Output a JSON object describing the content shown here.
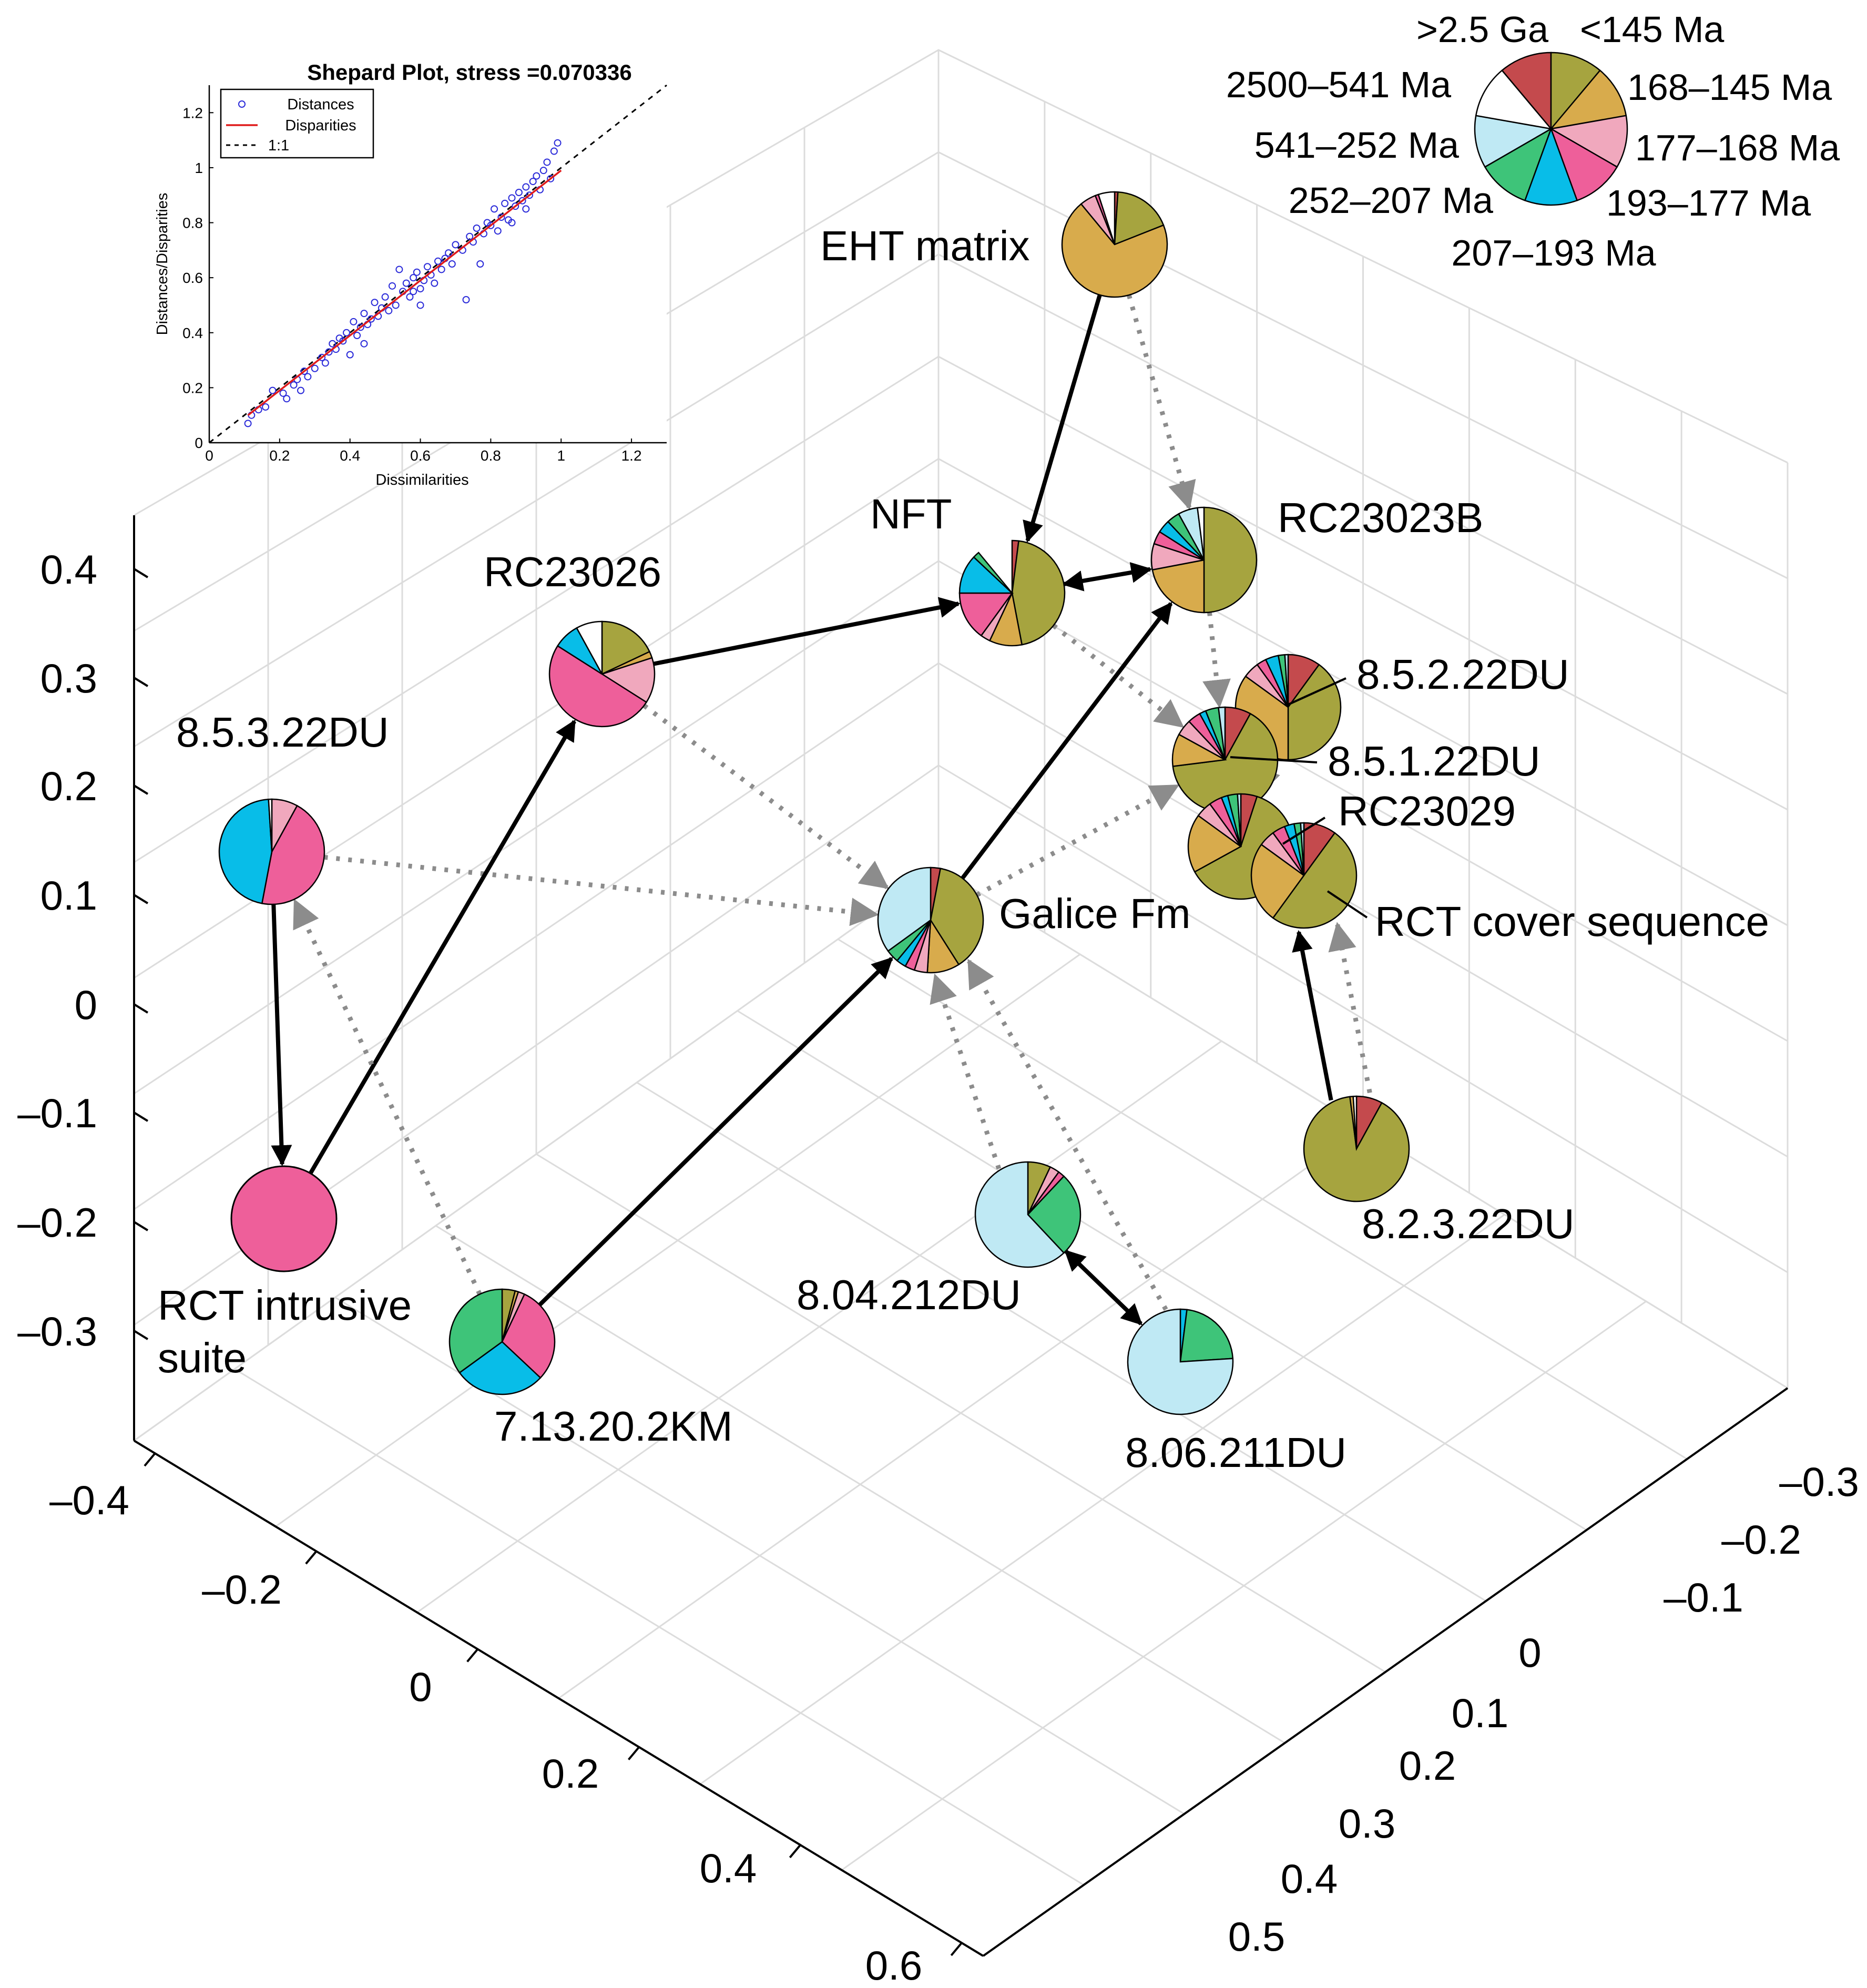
{
  "chart_data": {
    "type": "3d-scatter-pie",
    "title": "",
    "axes": {
      "vertical_ticks": [
        "0.4",
        "0.3",
        "0.2",
        "0.1",
        "0",
        "–0.1",
        "–0.2",
        "–0.3"
      ],
      "left_ticks": [
        "–0.4",
        "–0.2",
        "0",
        "0.2",
        "0.4",
        "0.6"
      ],
      "right_ticks": [
        "–0.3",
        "–0.2",
        "–0.1",
        "0",
        "0.1",
        "0.2",
        "0.3",
        "0.4",
        "0.5"
      ]
    },
    "age_bins": [
      {
        "name": ">2.5 Ga",
        "color": "#c44a4d"
      },
      {
        "name": "2500–541 Ma",
        "color": "#a6a43f"
      },
      {
        "name": "541–252 Ma",
        "color": "#d8ab4c"
      },
      {
        "name": "252–207 Ma",
        "color": "#f0a8bd"
      },
      {
        "name": "207–193 Ma",
        "color": "#ee5f9a"
      },
      {
        "name": "193–177 Ma",
        "color": "#08bde8"
      },
      {
        "name": "177–168 Ma",
        "color": "#3ec479"
      },
      {
        "name": "168–145 Ma",
        "color": "#bfe9f4"
      },
      {
        "name": "<145 Ma",
        "color": "#ffffff"
      }
    ],
    "samples": [
      {
        "id": "eht",
        "label": "EHT matrix",
        "fractions": [
          0.01,
          0.18,
          0.7,
          0.05,
          0.01,
          0,
          0,
          0,
          0.05
        ]
      },
      {
        "id": "nft",
        "label": "NFT",
        "fractions": [
          0.02,
          0.45,
          0.1,
          0.03,
          0.15,
          0.12,
          0.02,
          0,
          0
        ]
      },
      {
        "id": "rc23023b",
        "label": "RC23023B",
        "fractions": [
          0,
          0.5,
          0.22,
          0.08,
          0.04,
          0.04,
          0.04,
          0.06,
          0.02
        ]
      },
      {
        "id": "rc23026",
        "label": "RC23026",
        "fractions": [
          0,
          0.18,
          0.02,
          0.14,
          0.5,
          0.08,
          0,
          0,
          0.08
        ]
      },
      {
        "id": "d8531",
        "label": "8.5.3.22DU",
        "fractions": [
          0,
          0,
          0,
          0.08,
          0.45,
          0.46,
          0,
          0,
          0.01
        ]
      },
      {
        "id": "galice",
        "label": "Galice Fm",
        "fractions": [
          0.03,
          0.38,
          0.1,
          0.04,
          0.03,
          0.03,
          0.04,
          0.35,
          0
        ]
      },
      {
        "id": "d8522",
        "label": "8.5.2.22DU",
        "fractions": [
          0.1,
          0.4,
          0.35,
          0.05,
          0.03,
          0.04,
          0.02,
          0.01,
          0
        ]
      },
      {
        "id": "d8512",
        "label": "8.5.1.22DU",
        "fractions": [
          0.08,
          0.65,
          0.1,
          0.05,
          0.04,
          0.02,
          0.04,
          0.02,
          0
        ]
      },
      {
        "id": "rc23029",
        "label": "RC23029",
        "fractions": [
          0.05,
          0.62,
          0.18,
          0.05,
          0.04,
          0.02,
          0.03,
          0.01,
          0
        ]
      },
      {
        "id": "rctcover",
        "label": "RCT cover sequence",
        "fractions": [
          0.1,
          0.5,
          0.25,
          0.05,
          0.04,
          0.03,
          0.02,
          0.01,
          0
        ]
      },
      {
        "id": "rctint",
        "label": "RCT intrusive suite",
        "fractions": [
          0,
          0,
          0,
          0,
          1.0,
          0,
          0,
          0,
          0
        ]
      },
      {
        "id": "d71320",
        "label": "7.13.20.2KM",
        "fractions": [
          0,
          0.04,
          0.01,
          0.02,
          0.3,
          0.28,
          0.35,
          0,
          0
        ]
      },
      {
        "id": "d804",
        "label": "8.04.212DU",
        "fractions": [
          0,
          0.07,
          0,
          0.03,
          0.02,
          0,
          0.26,
          0.62,
          0
        ]
      },
      {
        "id": "d806",
        "label": "8.06.211DU",
        "fractions": [
          0,
          0,
          0,
          0,
          0,
          0.02,
          0.22,
          0.76,
          0
        ]
      },
      {
        "id": "d8232",
        "label": "8.2.3.22DU",
        "fractions": [
          0.08,
          0.9,
          0.01,
          0,
          0,
          0,
          0,
          0,
          0.01
        ]
      }
    ],
    "connections": [
      {
        "from": "eht",
        "to": "nft",
        "style": "solid"
      },
      {
        "from": "eht",
        "to": "rc23023b",
        "style": "dotted"
      },
      {
        "from": "nft",
        "to": "rc23023b",
        "style": "solid-double"
      },
      {
        "from": "rc23026",
        "to": "nft",
        "style": "solid"
      },
      {
        "from": "galice",
        "to": "rc23023b",
        "style": "solid"
      },
      {
        "from": "nft",
        "to": "d8512",
        "style": "dotted"
      },
      {
        "from": "rc23023b",
        "to": "d8512",
        "style": "dotted"
      },
      {
        "from": "galice",
        "to": "d8512",
        "style": "dotted"
      },
      {
        "from": "rc23026",
        "to": "galice",
        "style": "dotted"
      },
      {
        "from": "d8531",
        "to": "galice",
        "style": "dotted"
      },
      {
        "from": "d71320",
        "to": "galice",
        "style": "solid"
      },
      {
        "from": "d804",
        "to": "galice",
        "style": "dotted"
      },
      {
        "from": "d806",
        "to": "galice",
        "style": "dotted"
      },
      {
        "from": "d804",
        "to": "d806",
        "style": "solid-double"
      },
      {
        "from": "d8531",
        "to": "rctint",
        "style": "solid"
      },
      {
        "from": "rctint",
        "to": "rc23026",
        "style": "solid"
      },
      {
        "from": "d71320",
        "to": "d8531",
        "style": "dotted"
      },
      {
        "from": "d8232",
        "to": "rctcover",
        "style": "solid"
      },
      {
        "from": "d8232",
        "to": "rctcover",
        "style": "dotted"
      },
      {
        "from": "d8522",
        "to": "rc23029",
        "style": "dotted"
      }
    ]
  },
  "inset": {
    "title": "Shepard Plot, stress =0.070336",
    "xlabel": "Dissimilarities",
    "ylabel": "Distances/Disparities",
    "x_ticks": [
      "0",
      "0.2",
      "0.4",
      "0.6",
      "0.8",
      "1",
      "1.2"
    ],
    "y_ticks": [
      "0",
      "0.2",
      "0.4",
      "0.6",
      "0.8",
      "1",
      "1.2"
    ],
    "xlim": [
      0,
      1.3
    ],
    "ylim": [
      0,
      1.3
    ],
    "legend": [
      "Distances",
      "Disparities",
      "1:1"
    ],
    "points": [
      [
        0.11,
        0.07
      ],
      [
        0.12,
        0.1
      ],
      [
        0.14,
        0.12
      ],
      [
        0.16,
        0.13
      ],
      [
        0.18,
        0.19
      ],
      [
        0.21,
        0.18
      ],
      [
        0.22,
        0.16
      ],
      [
        0.24,
        0.21
      ],
      [
        0.25,
        0.23
      ],
      [
        0.26,
        0.19
      ],
      [
        0.27,
        0.26
      ],
      [
        0.28,
        0.24
      ],
      [
        0.3,
        0.27
      ],
      [
        0.32,
        0.31
      ],
      [
        0.33,
        0.29
      ],
      [
        0.34,
        0.33
      ],
      [
        0.35,
        0.36
      ],
      [
        0.36,
        0.34
      ],
      [
        0.37,
        0.38
      ],
      [
        0.38,
        0.37
      ],
      [
        0.39,
        0.4
      ],
      [
        0.4,
        0.32
      ],
      [
        0.41,
        0.44
      ],
      [
        0.42,
        0.39
      ],
      [
        0.43,
        0.42
      ],
      [
        0.44,
        0.47
      ],
      [
        0.45,
        0.43
      ],
      [
        0.46,
        0.45
      ],
      [
        0.47,
        0.51
      ],
      [
        0.48,
        0.46
      ],
      [
        0.49,
        0.49
      ],
      [
        0.5,
        0.53
      ],
      [
        0.51,
        0.48
      ],
      [
        0.52,
        0.57
      ],
      [
        0.53,
        0.5
      ],
      [
        0.54,
        0.63
      ],
      [
        0.55,
        0.55
      ],
      [
        0.56,
        0.58
      ],
      [
        0.57,
        0.53
      ],
      [
        0.58,
        0.6
      ],
      [
        0.59,
        0.62
      ],
      [
        0.6,
        0.56
      ],
      [
        0.61,
        0.59
      ],
      [
        0.62,
        0.64
      ],
      [
        0.63,
        0.61
      ],
      [
        0.64,
        0.58
      ],
      [
        0.65,
        0.66
      ],
      [
        0.66,
        0.63
      ],
      [
        0.67,
        0.67
      ],
      [
        0.68,
        0.69
      ],
      [
        0.69,
        0.65
      ],
      [
        0.7,
        0.72
      ],
      [
        0.72,
        0.7
      ],
      [
        0.73,
        0.52
      ],
      [
        0.74,
        0.75
      ],
      [
        0.75,
        0.73
      ],
      [
        0.76,
        0.78
      ],
      [
        0.77,
        0.65
      ],
      [
        0.78,
        0.76
      ],
      [
        0.79,
        0.8
      ],
      [
        0.8,
        0.79
      ],
      [
        0.81,
        0.85
      ],
      [
        0.82,
        0.77
      ],
      [
        0.83,
        0.82
      ],
      [
        0.84,
        0.87
      ],
      [
        0.85,
        0.81
      ],
      [
        0.86,
        0.89
      ],
      [
        0.87,
        0.86
      ],
      [
        0.88,
        0.91
      ],
      [
        0.89,
        0.88
      ],
      [
        0.9,
        0.93
      ],
      [
        0.91,
        0.9
      ],
      [
        0.92,
        0.95
      ],
      [
        0.93,
        0.97
      ],
      [
        0.94,
        0.92
      ],
      [
        0.95,
        0.99
      ],
      [
        0.96,
        1.02
      ],
      [
        0.97,
        0.96
      ],
      [
        0.98,
        1.06
      ],
      [
        0.99,
        1.09
      ],
      [
        0.6,
        0.5
      ],
      [
        0.58,
        0.55
      ],
      [
        0.44,
        0.36
      ],
      [
        0.86,
        0.8
      ],
      [
        0.9,
        0.85
      ]
    ]
  }
}
